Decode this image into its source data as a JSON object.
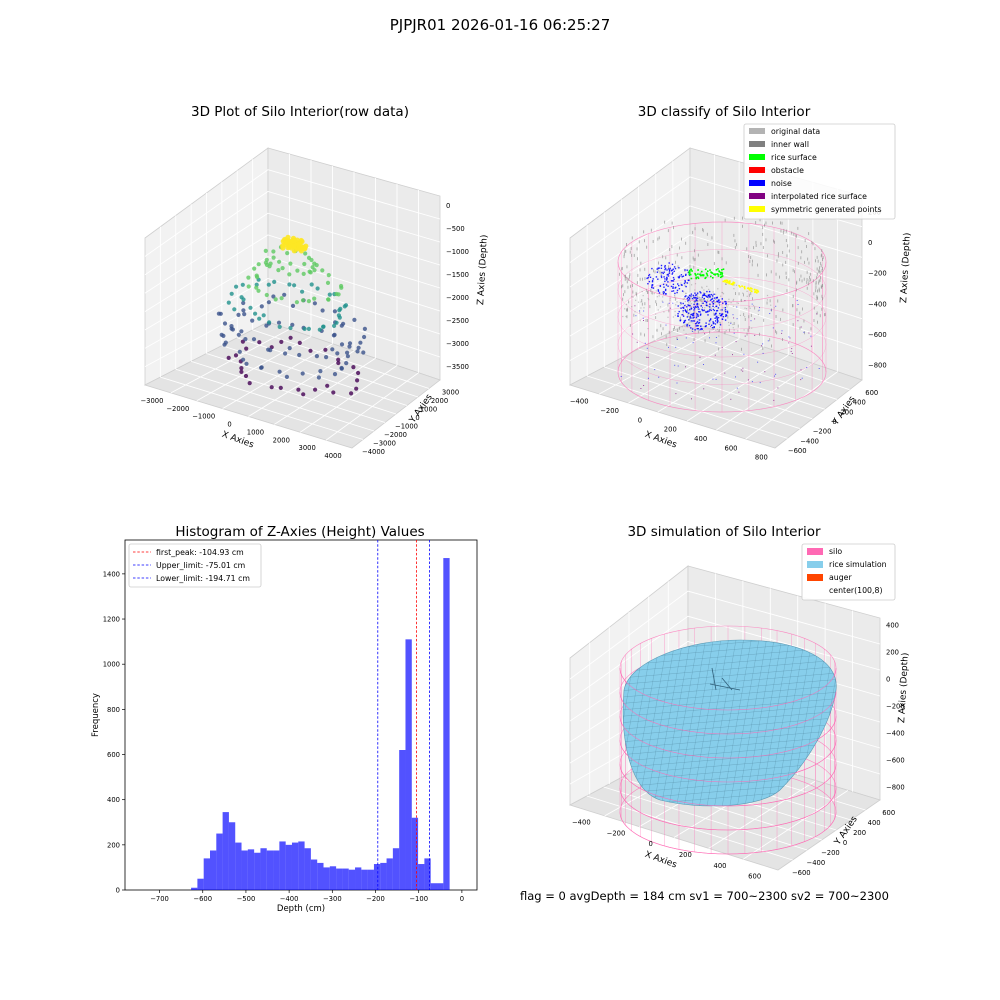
{
  "figure": {
    "suptitle": "PJPJR01 2026-01-16 06:25:27",
    "status_line": "flag = 0     avgDepth = 184 cm  sv1 = 700~2300  sv2 = 700~2300"
  },
  "chart_data": [
    {
      "id": "raw",
      "type": "scatter3d",
      "title": "3D Plot of Silo Interior(row data)",
      "xlabel": "X Axies",
      "ylabel": "Y Axies",
      "zlabel": "Z Axies (Depth)",
      "x_ticks": [
        -3000,
        -2000,
        -1000,
        0,
        1000,
        2000,
        3000,
        4000
      ],
      "y_ticks": [
        -4000,
        -3000,
        -2000,
        -1000,
        0,
        1000,
        2000,
        3000
      ],
      "z_ticks": [
        -3500,
        -3000,
        -2500,
        -2000,
        -1500,
        -1000,
        -500,
        0
      ],
      "xlim": [
        -3500,
        4500
      ],
      "ylim": [
        -4500,
        3500
      ],
      "zlim": [
        -3800,
        200
      ],
      "colormap": [
        "#440154",
        "#3b528b",
        "#21918c",
        "#5ec962",
        "#fde725"
      ]
    },
    {
      "id": "classify",
      "type": "scatter3d",
      "title": "3D classify of Silo Interior",
      "xlabel": "X Axies",
      "ylabel": "Y Axies",
      "zlabel": "Z Axies (Depth)",
      "x_ticks": [
        -400,
        -200,
        0,
        200,
        400,
        600,
        800
      ],
      "y_ticks": [
        -600,
        -400,
        -200,
        0,
        200,
        400,
        600
      ],
      "z_ticks": [
        -800,
        -600,
        -400,
        -200,
        0,
        200
      ],
      "xlim": [
        -500,
        850
      ],
      "ylim": [
        -700,
        700
      ],
      "zlim": [
        -900,
        300
      ],
      "legend": {
        "position": "upper-right",
        "items": [
          {
            "label": "original data",
            "color": "#b3b3b3"
          },
          {
            "label": "inner wall",
            "color": "#808080"
          },
          {
            "label": "rice surface",
            "color": "#00ff00"
          },
          {
            "label": "obstacle",
            "color": "#ff0000"
          },
          {
            "label": "noise",
            "color": "#0000ff"
          },
          {
            "label": "interpolated rice surface",
            "color": "#800080"
          },
          {
            "label": "symmetric generated points",
            "color": "#ffff00"
          }
        ]
      }
    },
    {
      "id": "histogram",
      "type": "bar",
      "title": "Histogram of Z-Axies (Height) Values",
      "xlabel": "Depth (cm)",
      "ylabel": "Frequency",
      "xlim": [
        -780,
        35
      ],
      "ylim": [
        0,
        1550
      ],
      "x_ticks": [
        -700,
        -600,
        -500,
        -400,
        -300,
        -200,
        -100,
        0
      ],
      "y_ticks": [
        0,
        200,
        400,
        600,
        800,
        1000,
        1200,
        1400
      ],
      "bar_color": "#0000ff",
      "bin_width": 14.6,
      "bin_start": -627,
      "values": [
        10,
        50,
        140,
        175,
        250,
        345,
        300,
        210,
        175,
        180,
        165,
        185,
        175,
        175,
        215,
        200,
        210,
        215,
        185,
        135,
        120,
        100,
        105,
        95,
        95,
        90,
        100,
        90,
        90,
        115,
        120,
        140,
        185,
        620,
        1110,
        320,
        115,
        140,
        30,
        30,
        1470
      ],
      "vlines": [
        {
          "label": "first_peak: -104.93 cm",
          "x": -104.93,
          "color": "#ff0000"
        },
        {
          "label": "Upper_limit: -75.01 cm",
          "x": -75.01,
          "color": "#0000ff"
        },
        {
          "label": "Lower_limit: -194.71 cm",
          "x": -194.71,
          "color": "#0000ff"
        }
      ],
      "legend_position": "upper-left"
    },
    {
      "id": "simulation",
      "type": "surface3d",
      "title": "3D simulation of Silo Interior",
      "xlabel": "X Axies",
      "ylabel": "Y Axies",
      "zlabel": "Z Axies (Depth)",
      "x_ticks": [
        -400,
        -200,
        0,
        200,
        400,
        600
      ],
      "y_ticks": [
        -600,
        -400,
        -200,
        0,
        200,
        400,
        600
      ],
      "z_ticks": [
        -800,
        -600,
        -400,
        -200,
        0,
        200,
        400
      ],
      "xlim": [
        -500,
        700
      ],
      "ylim": [
        -700,
        700
      ],
      "zlim": [
        -900,
        450
      ],
      "legend": {
        "position": "upper-right",
        "items": [
          {
            "label": "silo",
            "color": "#ff69b4"
          },
          {
            "label": "rice simulation",
            "color": "#87ceeb"
          },
          {
            "label": "auger",
            "color": "#ff4500"
          },
          {
            "label": "center(100,8)",
            "color": "#ffffff"
          }
        ]
      }
    }
  ]
}
